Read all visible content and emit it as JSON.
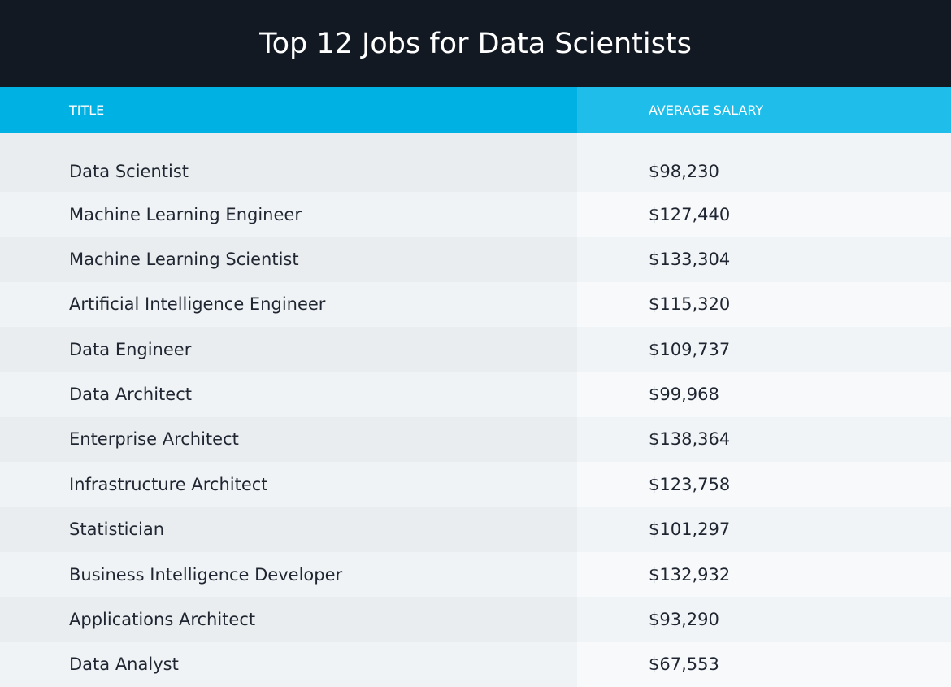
{
  "header": {
    "title": "Top 12 Jobs for Data Scientists"
  },
  "table": {
    "columns": [
      "TITLE",
      "AVERAGE SALARY"
    ],
    "rows": [
      [
        "Data Scientist",
        "$98,230"
      ],
      [
        "Machine Learning Engineer",
        "$127,440"
      ],
      [
        "Machine Learning Scientist",
        "$133,304"
      ],
      [
        "Artificial Intelligence Engineer",
        "$115,320"
      ],
      [
        "Data Engineer",
        "$109,737"
      ],
      [
        "Data Architect",
        "$99,968"
      ],
      [
        "Enterprise Architect",
        "$138,364"
      ],
      [
        "Infrastructure Architect",
        "$123,758"
      ],
      [
        "Statistician",
        "$101,297"
      ],
      [
        "Business Intelligence Developer",
        "$132,932"
      ],
      [
        "Applications Architect",
        "$93,290"
      ],
      [
        "Data Analyst",
        "$67,553"
      ]
    ]
  }
}
